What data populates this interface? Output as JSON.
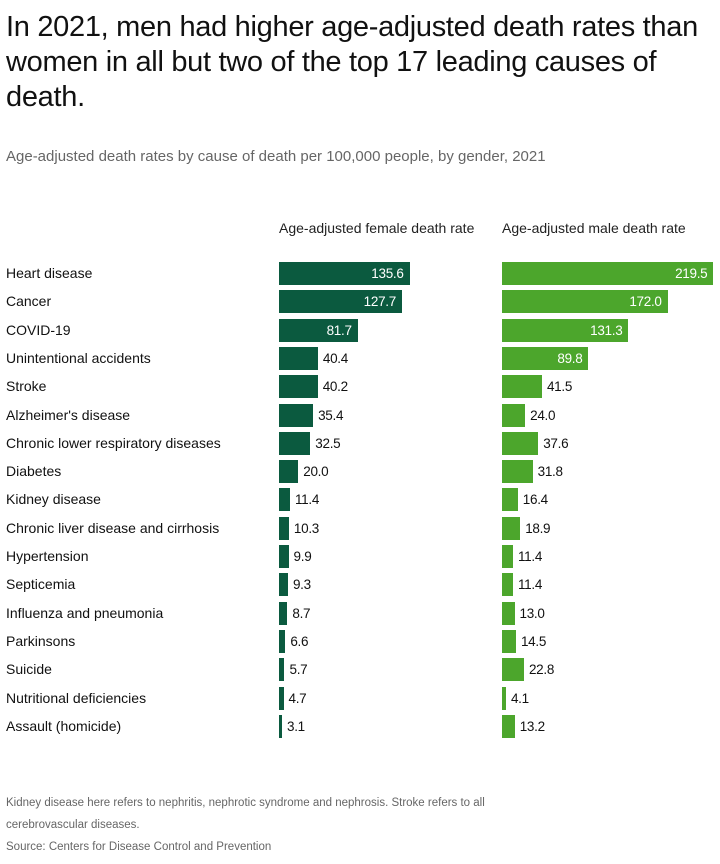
{
  "chart_data": {
    "type": "bar",
    "orientation": "horizontal",
    "title": "In 2021, men had higher age-adjusted death rates than women in all but two of the top 17 leading causes of death.",
    "subtitle": "Age-adjusted death rates by cause of death per 100,000 people, by gender, 2021",
    "categories": [
      "Heart disease",
      "Cancer",
      "COVID-19",
      "Unintentional accidents",
      "Stroke",
      "Alzheimer's disease",
      "Chronic lower respiratory diseases",
      "Diabetes",
      "Kidney disease",
      "Chronic liver disease and cirrhosis",
      "Hypertension",
      "Septicemia",
      "Influenza and pneumonia",
      "Parkinsons",
      "Suicide",
      "Nutritional deficiencies",
      "Assault (homicide)"
    ],
    "series": [
      {
        "name": "Age-adjusted female death rate",
        "color": "#0b5a3f",
        "values": [
          135.6,
          127.7,
          81.7,
          40.4,
          40.2,
          35.4,
          32.5,
          20.0,
          11.4,
          10.3,
          9.9,
          9.3,
          8.7,
          6.6,
          5.7,
          4.7,
          3.1
        ]
      },
      {
        "name": "Age-adjusted male death rate",
        "color": "#4ca62c",
        "values": [
          219.5,
          172.0,
          131.3,
          89.8,
          41.5,
          24.0,
          37.6,
          31.8,
          16.4,
          18.9,
          11.4,
          11.4,
          13.0,
          14.5,
          22.8,
          4.1,
          13.2
        ]
      }
    ],
    "data_labels": true,
    "grid": false
  },
  "footnote": {
    "line1": "Kidney disease here refers to nephritis, nephrotic syndrome and nephrosis. Stroke refers to all",
    "line2": "cerebrovascular diseases.",
    "source": "Source: Centers for Disease Control and Prevention"
  }
}
